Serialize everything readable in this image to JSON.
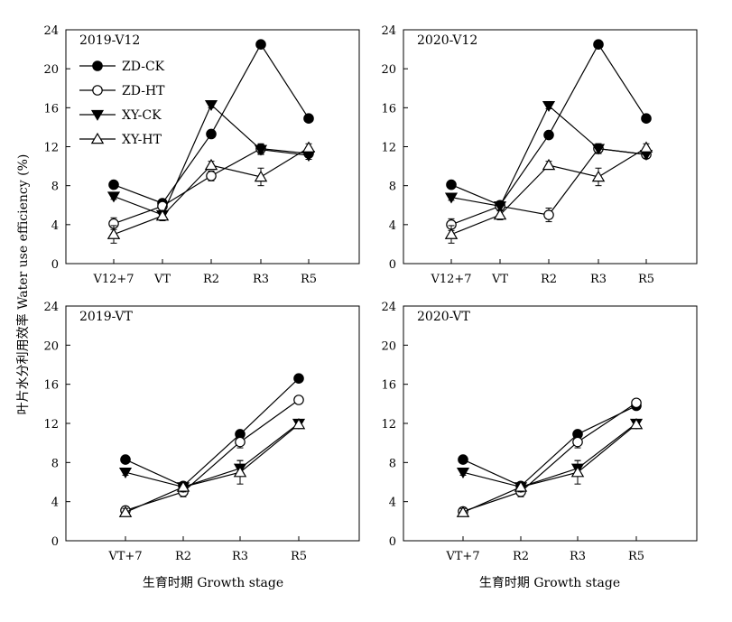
{
  "chart_data": {
    "type": "line",
    "ylabel": "叶片水分利用效率 Water use efficiency (%)",
    "xlabel": "生育时期 Growth stage",
    "ylim": [
      0,
      24
    ],
    "yticks": [
      0,
      4,
      8,
      12,
      16,
      20,
      24
    ],
    "legend": {
      "placement": "top-left of first panel",
      "entries": [
        "ZD-CK",
        "ZD-HT",
        "XY-CK",
        "XY-HT"
      ]
    },
    "series_styles": [
      {
        "name": "ZD-CK",
        "marker": "filled-circle"
      },
      {
        "name": "ZD-HT",
        "marker": "open-circle"
      },
      {
        "name": "XY-CK",
        "marker": "filled-down-triangle"
      },
      {
        "name": "XY-HT",
        "marker": "open-up-triangle"
      }
    ],
    "panels": [
      {
        "title": "2019-V12",
        "categories": [
          "V12+7",
          "VT",
          "R2",
          "R3",
          "R5"
        ],
        "series": [
          {
            "name": "ZD-CK",
            "values": [
              8.1,
              6.2,
              13.3,
              22.5,
              14.9
            ],
            "errors": [
              0.3,
              0.4,
              0.3,
              0.3,
              0.3
            ]
          },
          {
            "name": "ZD-HT",
            "values": [
              4.1,
              5.9,
              9.0,
              11.8,
              11.3
            ],
            "errors": [
              0.6,
              0.5,
              0.5,
              0.5,
              0.4
            ]
          },
          {
            "name": "XY-CK",
            "values": [
              6.9,
              5.0,
              16.3,
              11.7,
              11.1
            ],
            "errors": [
              0.3,
              0.4,
              0.3,
              0.5,
              0.4
            ]
          },
          {
            "name": "XY-HT",
            "values": [
              3.0,
              4.9,
              10.1,
              8.9,
              11.9
            ],
            "errors": [
              0.9,
              0.5,
              0.4,
              0.9,
              0.4
            ]
          }
        ]
      },
      {
        "title": "2020-V12",
        "categories": [
          "V12+7",
          "VT",
          "R2",
          "R3",
          "R5"
        ],
        "series": [
          {
            "name": "ZD-CK",
            "values": [
              8.1,
              6.0,
              13.2,
              22.5,
              14.9
            ],
            "errors": [
              0.3,
              0.4,
              0.3,
              0.3,
              0.3
            ]
          },
          {
            "name": "ZD-HT",
            "values": [
              4.0,
              5.9,
              5.0,
              11.8,
              11.2
            ],
            "errors": [
              0.6,
              0.5,
              0.7,
              0.5,
              0.4
            ]
          },
          {
            "name": "XY-CK",
            "values": [
              6.8,
              5.9,
              16.2,
              11.8,
              11.2
            ],
            "errors": [
              0.3,
              0.4,
              0.3,
              0.5,
              0.4
            ]
          },
          {
            "name": "XY-HT",
            "values": [
              3.0,
              5.0,
              10.1,
              8.9,
              11.9
            ],
            "errors": [
              0.9,
              0.5,
              0.4,
              0.9,
              0.4
            ]
          }
        ]
      },
      {
        "title": "2019-VT",
        "categories": [
          "VT+7",
          "R2",
          "R3",
          "R5"
        ],
        "series": [
          {
            "name": "ZD-CK",
            "values": [
              8.3,
              5.6,
              10.9,
              16.6
            ],
            "errors": [
              0.3,
              0.4,
              0.3,
              0.3
            ]
          },
          {
            "name": "ZD-HT",
            "values": [
              3.1,
              5.0,
              10.1,
              14.4
            ],
            "errors": [
              0.4,
              0.5,
              0.6,
              0.3
            ]
          },
          {
            "name": "XY-CK",
            "values": [
              7.0,
              5.5,
              7.4,
              12.0
            ],
            "errors": [
              0.3,
              0.4,
              0.8,
              0.4
            ]
          },
          {
            "name": "XY-HT",
            "values": [
              2.9,
              5.5,
              7.0,
              11.9
            ],
            "errors": [
              0.4,
              0.5,
              1.2,
              0.4
            ]
          }
        ]
      },
      {
        "title": "2020-VT",
        "categories": [
          "VT+7",
          "R2",
          "R3",
          "R5"
        ],
        "series": [
          {
            "name": "ZD-CK",
            "values": [
              8.3,
              5.6,
              10.9,
              13.8
            ],
            "errors": [
              0.3,
              0.4,
              0.3,
              0.3
            ]
          },
          {
            "name": "ZD-HT",
            "values": [
              3.0,
              5.0,
              10.1,
              14.1
            ],
            "errors": [
              0.4,
              0.5,
              0.6,
              0.3
            ]
          },
          {
            "name": "XY-CK",
            "values": [
              7.0,
              5.5,
              7.4,
              12.0
            ],
            "errors": [
              0.3,
              0.4,
              0.8,
              0.4
            ]
          },
          {
            "name": "XY-HT",
            "values": [
              2.9,
              5.5,
              7.0,
              11.9
            ],
            "errors": [
              0.4,
              0.5,
              1.2,
              0.4
            ]
          }
        ]
      }
    ]
  }
}
